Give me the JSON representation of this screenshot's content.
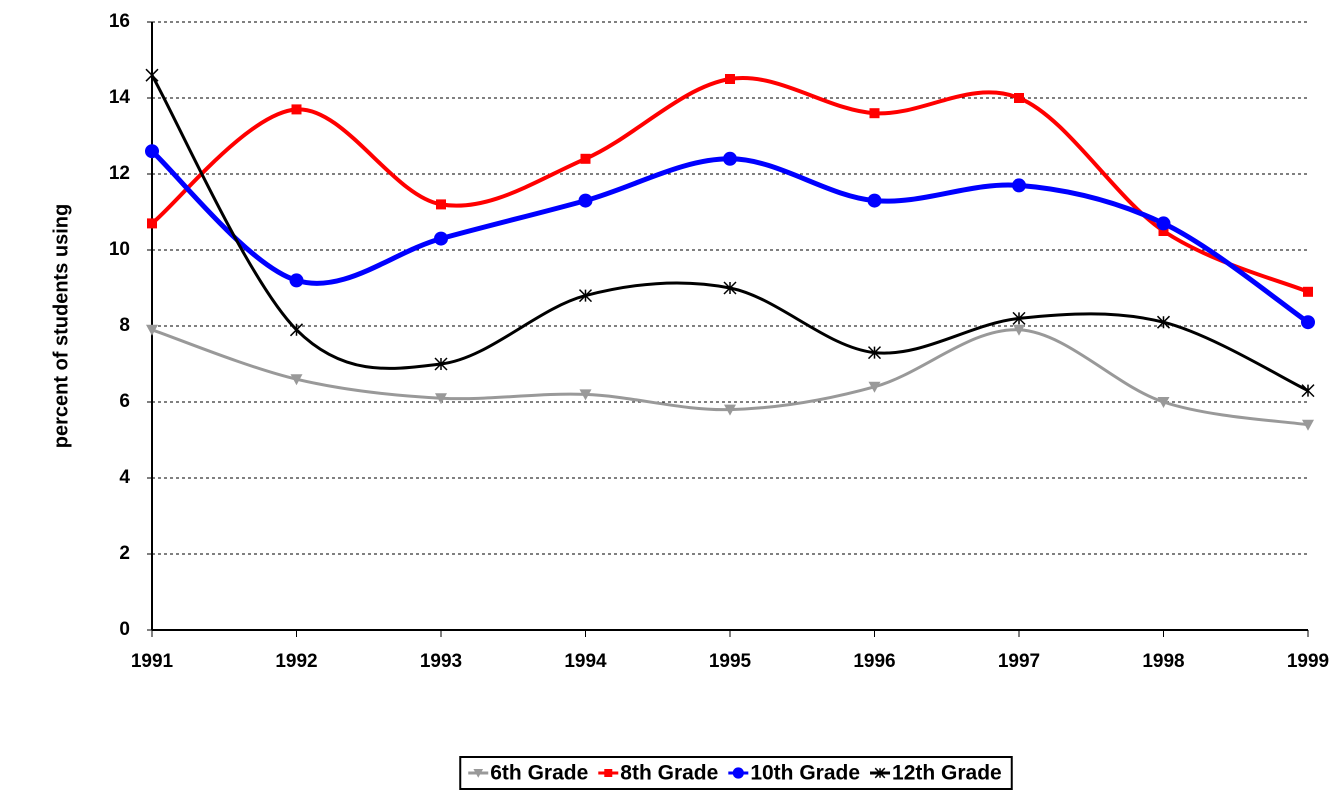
{
  "chart_data": {
    "type": "line",
    "y_label": "percent of students using",
    "categories": [
      "1991",
      "1992",
      "1993",
      "1994",
      "1995",
      "1996",
      "1997",
      "1998",
      "1999"
    ],
    "series": [
      {
        "name": "6th Grade",
        "color": "#999999",
        "marker": "triangle-down",
        "values": [
          7.9,
          6.6,
          6.1,
          6.2,
          5.8,
          6.4,
          7.9,
          6.0,
          5.4
        ]
      },
      {
        "name": "8th Grade",
        "color": "#ff0000",
        "marker": "square",
        "values": [
          10.7,
          13.7,
          11.2,
          12.4,
          14.5,
          13.6,
          14.0,
          10.5,
          8.9
        ]
      },
      {
        "name": "10th Grade",
        "color": "#0000ff",
        "marker": "circle",
        "values": [
          12.6,
          9.2,
          10.3,
          11.3,
          12.4,
          11.3,
          11.7,
          10.7,
          8.1
        ]
      },
      {
        "name": "12th Grade",
        "color": "#000000",
        "marker": "star",
        "values": [
          14.6,
          7.9,
          7.0,
          8.8,
          9.0,
          7.3,
          8.2,
          8.1,
          6.3
        ]
      }
    ],
    "ylim": [
      0,
      16
    ],
    "yticks": [
      0,
      2,
      4,
      6,
      8,
      10,
      12,
      14,
      16
    ],
    "grid": true,
    "smooth": true,
    "legend": "bottom"
  }
}
